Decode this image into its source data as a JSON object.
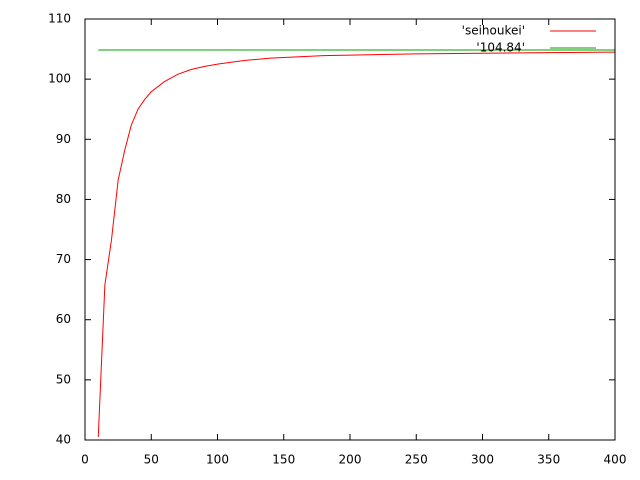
{
  "chart_data": {
    "type": "line",
    "series": [
      {
        "name": "'seihoukei'",
        "color": "#ff0000",
        "x": [
          10,
          15,
          20,
          25,
          30,
          35,
          40,
          45,
          50,
          60,
          70,
          80,
          90,
          100,
          120,
          140,
          160,
          180,
          200,
          250,
          300,
          350,
          400
        ],
        "values": [
          40.5,
          65.8,
          73.3,
          83.2,
          88.2,
          92.4,
          95,
          96.6,
          97.9,
          99.6,
          100.8,
          101.6,
          102.1,
          102.5,
          103.1,
          103.5,
          103.7,
          103.9,
          104,
          104.2,
          104.3,
          104.4,
          104.5
        ]
      },
      {
        "name": "'104.84'",
        "color": "#00a000",
        "x": [
          10,
          400
        ],
        "values": [
          104.84,
          104.84
        ]
      }
    ],
    "xlim": [
      0,
      400
    ],
    "xticks": [
      0,
      50,
      100,
      150,
      200,
      250,
      300,
      350,
      400
    ],
    "ylim": [
      40,
      110
    ],
    "yticks": [
      40,
      50,
      60,
      70,
      80,
      90,
      100,
      110
    ],
    "grid": false,
    "legend": "top-right"
  }
}
